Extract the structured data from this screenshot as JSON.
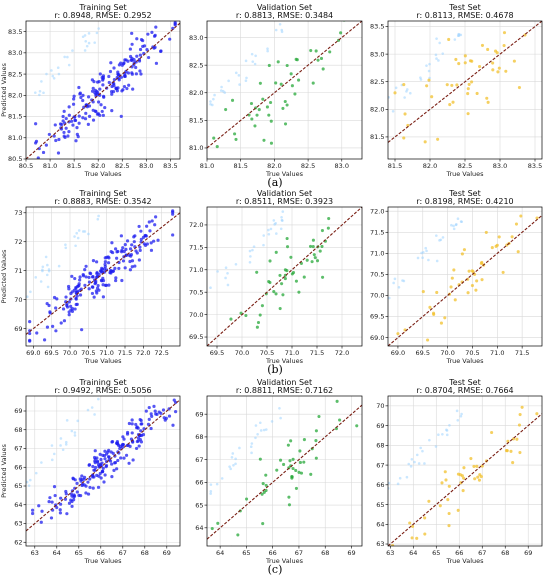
{
  "captions": [
    "(a)",
    "(b)",
    "(c)"
  ],
  "colors": {
    "train": "#1d1df0",
    "validation": "#27a83a",
    "test": "#f2c02c",
    "fit_line": "#c0392b",
    "bg_points": "#9fd3ff"
  },
  "chart_data": [
    {
      "type": "scatter",
      "title": "Training Set",
      "subtitle": "r: 0.8948, RMSE: 0.2952",
      "xlabel": "True Values",
      "ylabel": "Predicted Values",
      "xlim": [
        80.5,
        83.7
      ],
      "ylim": [
        80.5,
        83.75
      ],
      "xticks": [
        "80.5",
        "81.0",
        "81.5",
        "82.0",
        "82.5",
        "83.0",
        "83.5"
      ],
      "yticks": [
        "80.5",
        "81.0",
        "81.5",
        "82.0",
        "82.5",
        "83.0",
        "83.5"
      ],
      "grid": true,
      "series": [
        {
          "color": "#1d1df0",
          "n": 200,
          "r": 0.8948,
          "rmse": 0.2952,
          "x_range": [
            80.7,
            83.6
          ]
        }
      ]
    },
    {
      "type": "scatter",
      "title": "Validation Set",
      "subtitle": "r: 0.8813, RMSE: 0.3484",
      "xlabel": "True Values",
      "ylabel": "",
      "xlim": [
        81.0,
        83.3
      ],
      "ylim": [
        80.8,
        83.3
      ],
      "xticks": [
        "81.0",
        "81.5",
        "82.0",
        "82.5",
        "83.0"
      ],
      "yticks": [
        "81.0",
        "81.5",
        "82.0",
        "82.5",
        "83.0"
      ],
      "grid": true,
      "series": [
        {
          "color": "#27a83a",
          "n": 48,
          "r": 0.8813,
          "rmse": 0.3484,
          "x_range": [
            81.1,
            83.2
          ]
        }
      ]
    },
    {
      "type": "scatter",
      "title": "Test Set",
      "subtitle": "r: 0.8113, RMSE: 0.4678",
      "xlabel": "True Values",
      "ylabel": "",
      "xlim": [
        81.4,
        83.6
      ],
      "ylim": [
        81.1,
        83.6
      ],
      "xticks": [
        "81.5",
        "82.0",
        "82.5",
        "83.0",
        "83.5"
      ],
      "yticks": [
        "81.5",
        "82.0",
        "82.5",
        "83.0",
        "83.5"
      ],
      "grid": true,
      "series": [
        {
          "color": "#f2c02c",
          "n": 48,
          "r": 0.8113,
          "rmse": 0.4678,
          "x_range": [
            81.5,
            83.6
          ]
        }
      ]
    },
    {
      "type": "scatter",
      "title": "Training Set",
      "subtitle": "r: 0.8883, RMSE: 0.3542",
      "xlabel": "True Values",
      "ylabel": "Predicted Values",
      "xlim": [
        68.8,
        73.0
      ],
      "ylim": [
        68.4,
        73.2
      ],
      "xticks": [
        "69.0",
        "69.5",
        "70.0",
        "70.5",
        "71.0",
        "71.5",
        "72.0",
        "72.5"
      ],
      "yticks": [
        "69",
        "70",
        "71",
        "72",
        "73"
      ],
      "grid": true,
      "series": [
        {
          "color": "#1d1df0",
          "n": 200,
          "r": 0.8883,
          "rmse": 0.3542,
          "x_range": [
            68.9,
            72.8
          ]
        }
      ]
    },
    {
      "type": "scatter",
      "title": "Validation Set",
      "subtitle": "r: 0.8511, RMSE: 0.3923",
      "xlabel": "True Values",
      "ylabel": "",
      "xlim": [
        69.3,
        72.4
      ],
      "ylim": [
        69.3,
        72.4
      ],
      "xticks": [
        "69.5",
        "70.0",
        "70.5",
        "71.0",
        "71.5",
        "72.0"
      ],
      "yticks": [
        "69.5",
        "70.0",
        "70.5",
        "71.0",
        "71.5",
        "72.0"
      ],
      "grid": true,
      "series": [
        {
          "color": "#27a83a",
          "n": 48,
          "r": 0.8511,
          "rmse": 0.3923,
          "x_range": [
            69.6,
            72.2
          ]
        }
      ]
    },
    {
      "type": "scatter",
      "title": "Test Set",
      "subtitle": "r: 0.8198, RMSE: 0.4210",
      "xlabel": "True Values",
      "ylabel": "",
      "xlim": [
        68.8,
        71.9
      ],
      "ylim": [
        68.8,
        72.1
      ],
      "xticks": [
        "69.0",
        "69.5",
        "70.0",
        "70.5",
        "71.0",
        "71.5"
      ],
      "yticks": [
        "69.0",
        "69.5",
        "70.0",
        "70.5",
        "71.0",
        "71.5",
        "72.0"
      ],
      "grid": true,
      "series": [
        {
          "color": "#f2c02c",
          "n": 48,
          "r": 0.8198,
          "rmse": 0.421,
          "x_range": [
            69.0,
            71.8
          ]
        }
      ]
    },
    {
      "type": "scatter",
      "title": "Training Set",
      "subtitle": "r: 0.9492, RMSE: 0.5056",
      "xlabel": "True Values",
      "ylabel": "Predicted Values",
      "xlim": [
        62.6,
        69.6
      ],
      "ylim": [
        61.8,
        69.8
      ],
      "xticks": [
        "63",
        "64",
        "65",
        "66",
        "67",
        "68",
        "69"
      ],
      "yticks": [
        "62",
        "63",
        "64",
        "65",
        "66",
        "67",
        "68",
        "69"
      ],
      "grid": true,
      "series": [
        {
          "color": "#1d1df0",
          "n": 200,
          "r": 0.9492,
          "rmse": 0.5056,
          "x_range": [
            62.9,
            69.4
          ]
        }
      ]
    },
    {
      "type": "scatter",
      "title": "Validation Set",
      "subtitle": "r: 0.8811, RMSE: 0.7162",
      "xlabel": "True Values",
      "ylabel": "",
      "xlim": [
        63.5,
        69.4
      ],
      "ylim": [
        63.2,
        69.8
      ],
      "xticks": [
        "64",
        "65",
        "66",
        "67",
        "68",
        "69"
      ],
      "yticks": [
        "64",
        "65",
        "66",
        "67",
        "68",
        "69"
      ],
      "grid": true,
      "series": [
        {
          "color": "#27a83a",
          "n": 48,
          "r": 0.8811,
          "rmse": 0.7162,
          "x_range": [
            63.7,
            69.2
          ]
        }
      ]
    },
    {
      "type": "scatter",
      "title": "Test Set",
      "subtitle": "r: 0.8704, RMSE: 0.7664",
      "xlabel": "True Values",
      "ylabel": "",
      "xlim": [
        62.9,
        69.6
      ],
      "ylim": [
        62.9,
        70.5
      ],
      "xticks": [
        "63",
        "64",
        "65",
        "66",
        "67",
        "68",
        "69"
      ],
      "yticks": [
        "63",
        "64",
        "65",
        "66",
        "67",
        "68",
        "69",
        "70"
      ],
      "grid": true,
      "series": [
        {
          "color": "#f2c02c",
          "n": 48,
          "r": 0.8704,
          "rmse": 0.7664,
          "x_range": [
            63.1,
            69.4
          ]
        }
      ]
    }
  ]
}
